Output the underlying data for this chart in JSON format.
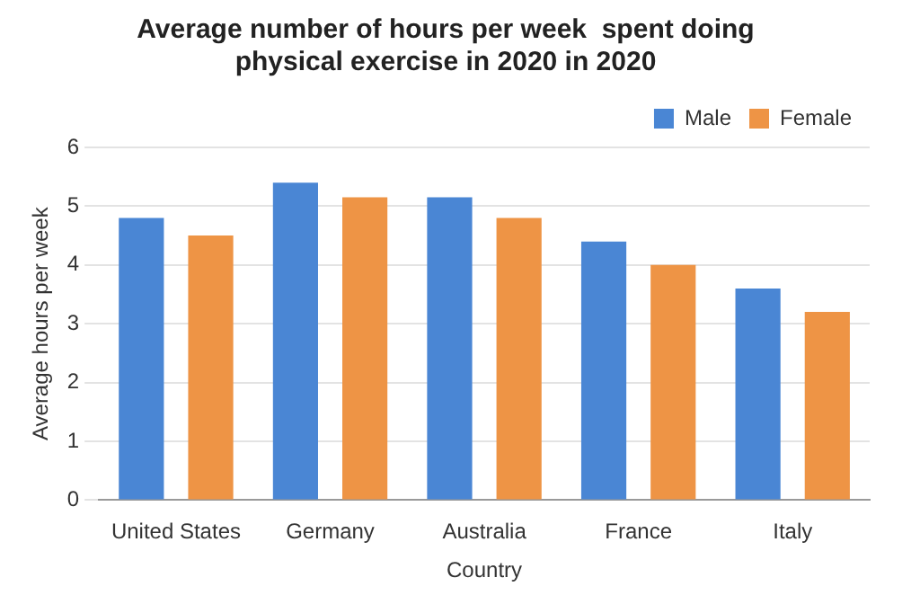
{
  "chart_data": {
    "type": "bar",
    "title": [
      "Average number of hours per week  spent doing",
      "physical exercise in 2020 in 2020"
    ],
    "xlabel": "Country",
    "ylabel": "Average hours per week",
    "categories": [
      "United States",
      "Germany",
      "Australia",
      "France",
      "Italy"
    ],
    "series": [
      {
        "name": "Male",
        "color": "#4a86d4",
        "values": [
          4.8,
          5.4,
          5.15,
          4.4,
          3.6
        ]
      },
      {
        "name": "Female",
        "color": "#ee9445",
        "values": [
          4.5,
          5.15,
          4.8,
          4.0,
          3.2
        ]
      }
    ],
    "ylim": [
      0,
      6
    ],
    "yticks": [
      0,
      1,
      2,
      3,
      4,
      5,
      6
    ],
    "grid": "y",
    "legend": "top right"
  }
}
